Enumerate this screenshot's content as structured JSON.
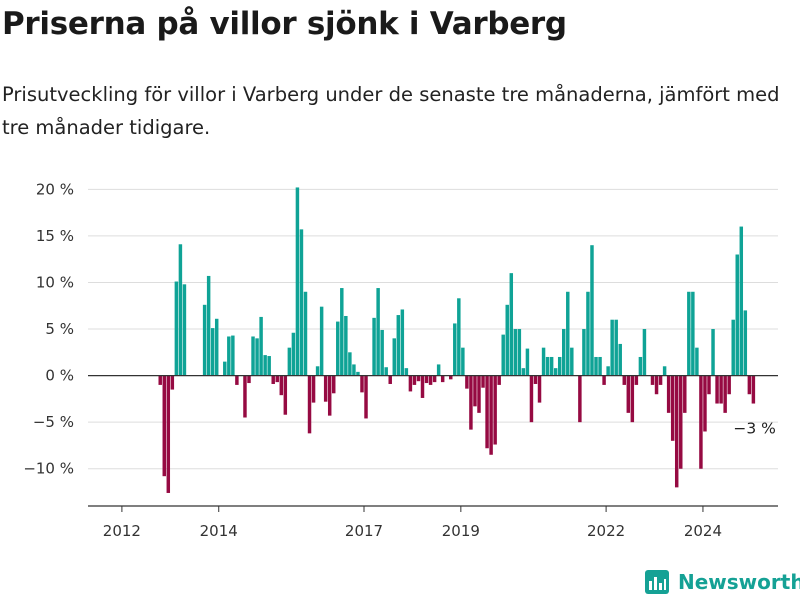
{
  "header": {
    "title": "Priserna på villor sjönk i Varberg",
    "subtitle": "Prisutveckling för villor i Varberg under de senaste tre månaderna, jämfört med tre månader tidigare."
  },
  "brand": {
    "name": "Newsworthy",
    "color": "#15a195",
    "logo_icon": "newsworthy-chart-icon"
  },
  "chart_data": {
    "type": "bar",
    "x_label_format": "year",
    "x_start": 2012.0,
    "x_step_months": 1,
    "xlim": [
      2011.3,
      2025.55
    ],
    "x_ticks": [
      {
        "value": 2012,
        "label": "2012"
      },
      {
        "value": 2014,
        "label": "2014"
      },
      {
        "value": 2017,
        "label": "2017"
      },
      {
        "value": 2019,
        "label": "2019"
      },
      {
        "value": 2022,
        "label": "2022"
      },
      {
        "value": 2024,
        "label": "2024"
      }
    ],
    "ylim": [
      -14,
      21
    ],
    "y_ticks": [
      {
        "value": 20,
        "label": "20 %"
      },
      {
        "value": 15,
        "label": "15 %"
      },
      {
        "value": 10,
        "label": "10 %"
      },
      {
        "value": 5,
        "label": "5 %"
      },
      {
        "value": 0,
        "label": "0 %"
      },
      {
        "value": -5,
        "label": "−5 %"
      },
      {
        "value": -10,
        "label": "−10 %"
      }
    ],
    "grid": true,
    "positive_color": "#0fa396",
    "negative_color": "#960a42",
    "values": [
      null,
      null,
      null,
      null,
      null,
      null,
      null,
      null,
      null,
      -1.0,
      -10.8,
      -12.6,
      -1.5,
      10.1,
      14.1,
      9.8,
      null,
      null,
      null,
      null,
      7.6,
      10.7,
      5.1,
      6.1,
      null,
      1.5,
      4.2,
      4.3,
      -1.0,
      null,
      -4.5,
      -0.8,
      4.2,
      4.0,
      6.3,
      2.2,
      2.1,
      -0.9,
      -0.7,
      -2.1,
      -4.2,
      3.0,
      4.6,
      20.2,
      15.7,
      9.0,
      -6.2,
      -2.9,
      1.0,
      7.4,
      -2.8,
      -4.3,
      -1.9,
      5.8,
      9.4,
      6.4,
      2.5,
      1.2,
      0.4,
      -1.8,
      -4.6,
      null,
      6.2,
      9.4,
      4.9,
      0.9,
      -0.9,
      4.0,
      6.5,
      7.1,
      0.8,
      -1.7,
      -1.0,
      -0.6,
      -2.4,
      -0.8,
      -1.0,
      -0.7,
      1.2,
      -0.7,
      null,
      -0.4,
      5.6,
      8.3,
      3.0,
      -1.4,
      -5.8,
      -3.3,
      -4.0,
      -1.3,
      -7.8,
      -8.5,
      -7.4,
      -1.0,
      4.4,
      7.6,
      11.0,
      5.0,
      5.0,
      0.8,
      2.9,
      -5.0,
      -0.9,
      -2.9,
      3.0,
      2.0,
      2.0,
      0.8,
      2.0,
      5.0,
      9.0,
      3.0,
      null,
      -5.0,
      5.0,
      9.0,
      14.0,
      2.0,
      2.0,
      -1.0,
      1.0,
      6.0,
      6.0,
      3.4,
      -1.0,
      -4.0,
      -5.0,
      -1.0,
      2.0,
      5.0,
      null,
      -1.0,
      -2.0,
      -1.0,
      1.0,
      -4.0,
      -7.0,
      -12.0,
      -10.0,
      -4.0,
      9.0,
      9.0,
      3.0,
      -10.0,
      -6.0,
      -2.0,
      5.0,
      -3.0,
      -3.0,
      -4.0,
      -2.0,
      6.0,
      13.0,
      16.0,
      7.0,
      -2.0,
      -3.0
    ],
    "last_value_label": "−3 %"
  }
}
